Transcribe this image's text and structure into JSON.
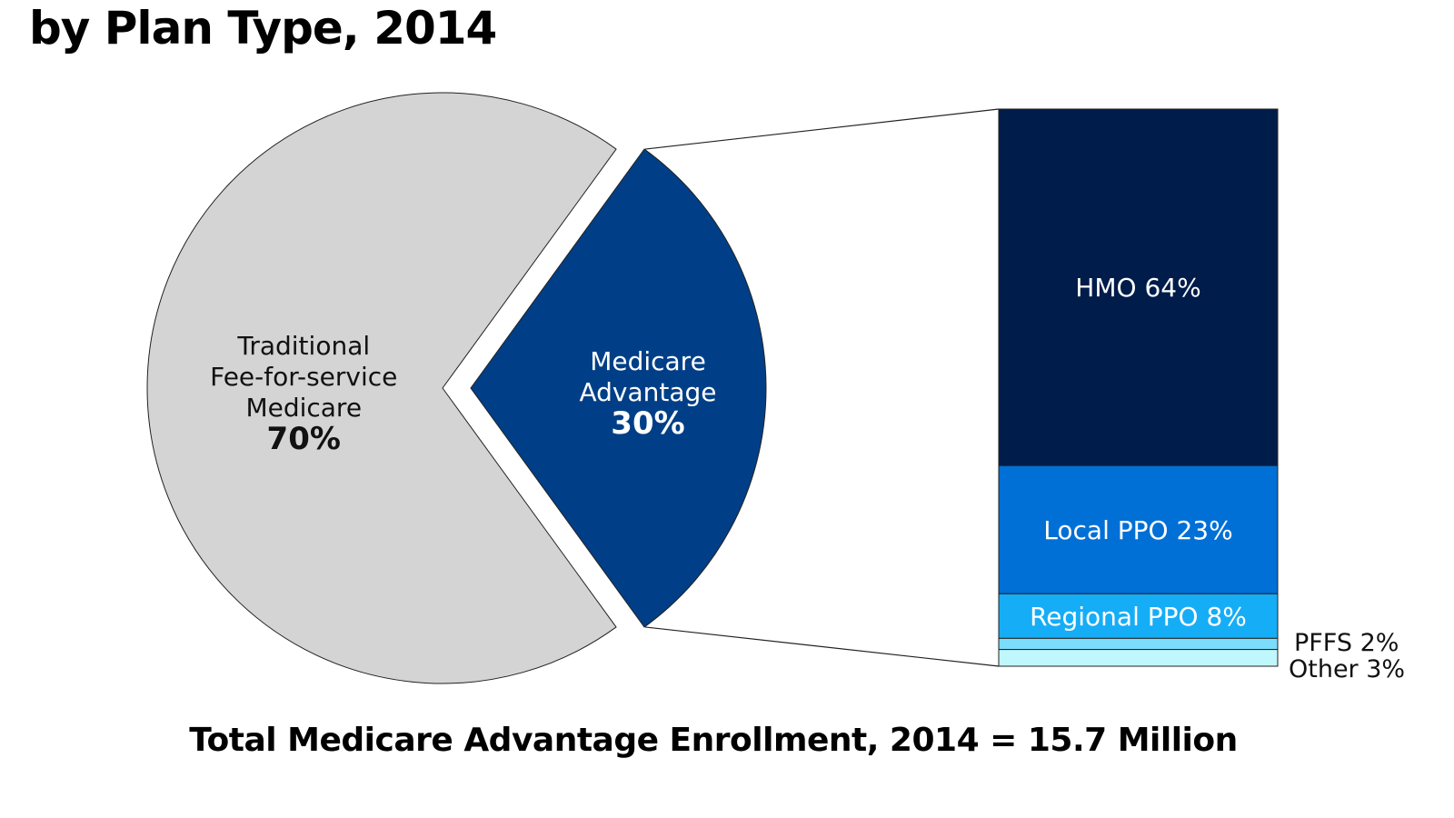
{
  "chart_data": {
    "type": "pie-of-bar",
    "title": "by Plan Type, 2014",
    "footer": "Total Medicare Advantage Enrollment, 2014 = 15.7 Million",
    "pie": [
      {
        "label_lines": [
          "Traditional",
          "Fee-for-service",
          "Medicare"
        ],
        "value_label": "70%",
        "value": 70,
        "color": "#d4d4d4",
        "exploded": false
      },
      {
        "label_lines": [
          "Medicare",
          "Advantage"
        ],
        "value_label": "30%",
        "value": 30,
        "color": "#003f87",
        "exploded": true
      }
    ],
    "bar": [
      {
        "label": "HMO 64%",
        "value": 64,
        "color": "#001c4a",
        "label_outside": false
      },
      {
        "label": "Local PPO 23%",
        "value": 23,
        "color": "#0070d6",
        "label_outside": false
      },
      {
        "label": "Regional PPO 8%",
        "value": 8,
        "color": "#16adf7",
        "label_outside": false
      },
      {
        "label": "PFFS 2%",
        "value": 2,
        "color": "#7bdcfb",
        "label_outside": true
      },
      {
        "label": "Other 3%",
        "value": 3,
        "color": "#bff7fd",
        "label_outside": true
      }
    ]
  }
}
